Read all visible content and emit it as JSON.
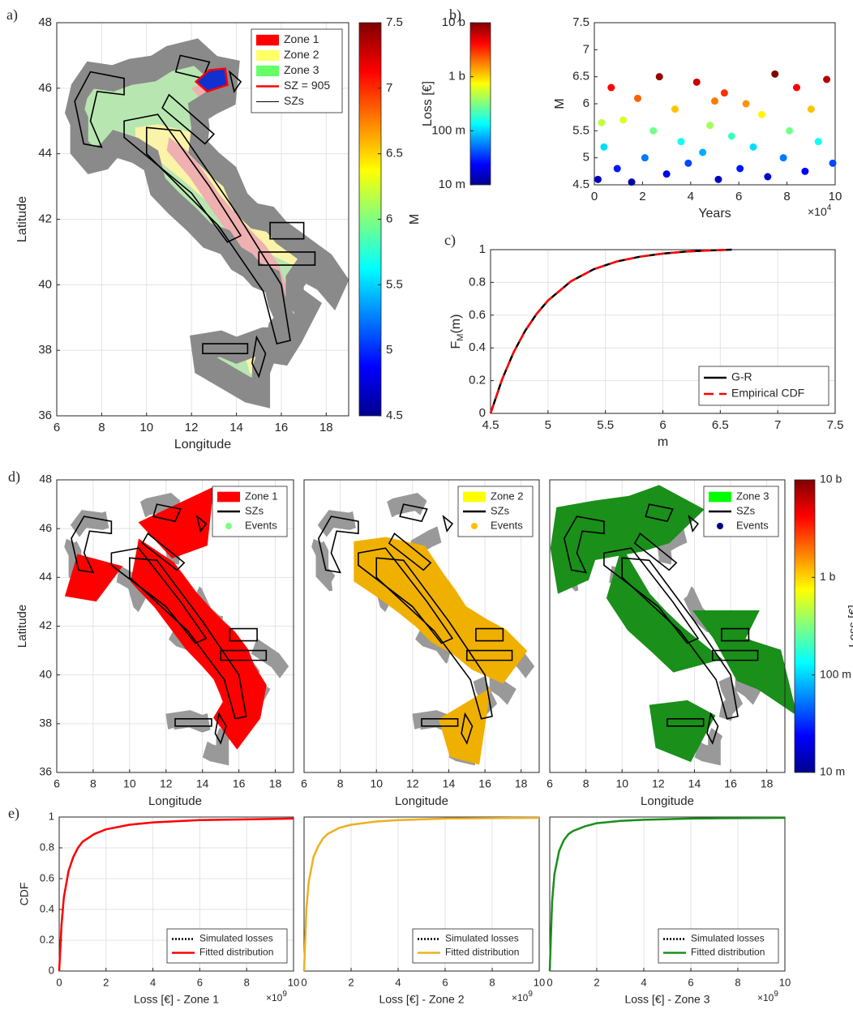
{
  "chart_data": [
    {
      "type": "map",
      "panel": "a)",
      "xlabel": "Longitude",
      "ylabel": "Latitude",
      "xlim": [
        6,
        19
      ],
      "ylim": [
        36,
        48
      ],
      "xticks": [
        6,
        8,
        10,
        12,
        14,
        16,
        18
      ],
      "yticks": [
        36,
        38,
        40,
        42,
        44,
        46,
        48
      ],
      "grid": true,
      "legend_loc": "northeast",
      "legend": [
        {
          "name": "Zone 1",
          "color": "#ff0000",
          "style": "patch"
        },
        {
          "name": "Zone 2",
          "color": "#ffff66",
          "style": "patch"
        },
        {
          "name": "Zone 3",
          "color": "#66ff66",
          "style": "patch"
        },
        {
          "name": "SZ = 905",
          "color": "#ff0000",
          "style": "line"
        },
        {
          "name": "SZs",
          "color": "#000000",
          "style": "thin"
        }
      ],
      "colorbar": {
        "label": "M",
        "lim": [
          4.5,
          7.5
        ],
        "ticks": [
          4.5,
          5,
          5.5,
          6,
          6.5,
          7,
          7.5
        ],
        "colormap": "jet"
      }
    },
    {
      "type": "scatter",
      "panel": "b)",
      "xlabel": "Years",
      "ylabel": "M",
      "x_exponent": [
        "×10",
        "4"
      ],
      "xlim": [
        0,
        100000
      ],
      "ylim": [
        4.5,
        7.5
      ],
      "xticks": [
        0,
        {
          "value": 20000,
          "label": "2"
        },
        {
          "value": 40000,
          "label": "4"
        },
        {
          "value": 60000,
          "label": "6"
        },
        {
          "value": 80000,
          "label": "8"
        },
        {
          "value": 100000,
          "label": "10"
        }
      ],
      "yticks": [
        4.5,
        5,
        5.5,
        6,
        6.5,
        7,
        7.5
      ],
      "grid": false,
      "colormap": "jet",
      "x": [
        1500,
        4000,
        7000,
        9500,
        12000,
        15500,
        18000,
        21000,
        24500,
        27000,
        30000,
        33500,
        36000,
        39000,
        42500,
        45000,
        48000,
        51500,
        54000,
        57000,
        60500,
        63000,
        66000,
        69500,
        72000,
        75000,
        78500,
        81000,
        84000,
        87500,
        90000,
        93000,
        96500,
        99000,
        3000,
        50000
      ],
      "values": [
        4.6,
        5.2,
        6.3,
        4.8,
        5.7,
        4.55,
        6.1,
        5.0,
        5.5,
        6.5,
        4.7,
        5.9,
        5.3,
        4.9,
        6.4,
        5.1,
        5.6,
        4.6,
        6.2,
        5.4,
        4.8,
        6.0,
        5.2,
        5.8,
        4.65,
        6.55,
        5.0,
        5.5,
        6.3,
        4.75,
        5.9,
        5.3,
        6.45,
        4.9,
        5.65,
        6.05
      ],
      "colorbar": {
        "label": "Loss [€]",
        "lim": [
          10000000,
          10000000000
        ],
        "log": true,
        "colormap": "jet",
        "ticks": [
          {
            "value": 10000000,
            "label": "10 m"
          },
          {
            "value": 100000000,
            "label": "100 m"
          },
          {
            "value": 1000000000,
            "label": "1 b"
          },
          {
            "value": 10000000000,
            "label": "10 b"
          }
        ]
      }
    },
    {
      "type": "line",
      "panel": "c)",
      "xlabel": "m",
      "ylabel": [
        "F",
        "M",
        "(m)"
      ],
      "xlim": [
        4.5,
        7.5
      ],
      "ylim": [
        0,
        1
      ],
      "xticks": [
        4.5,
        5,
        5.5,
        6,
        6.5,
        7,
        7.5
      ],
      "yticks": [
        0,
        0.2,
        0.4,
        0.6,
        0.8,
        1
      ],
      "grid": true,
      "legend_loc": "southeast",
      "x": [
        4.5,
        4.6,
        4.7,
        4.8,
        4.9,
        5.0,
        5.2,
        5.4,
        5.6,
        5.8,
        6.0,
        6.2,
        6.4,
        6.6
      ],
      "series": [
        {
          "name": "G-R",
          "color": "#000000",
          "style": "solid",
          "values": [
            0,
            0.207,
            0.372,
            0.503,
            0.607,
            0.689,
            0.807,
            0.881,
            0.928,
            0.957,
            0.976,
            0.988,
            0.995,
            1
          ]
        },
        {
          "name": "Empirical CDF",
          "color": "#ff0000",
          "style": "dashed",
          "values": [
            0,
            0.207,
            0.372,
            0.503,
            0.607,
            0.689,
            0.807,
            0.881,
            0.928,
            0.957,
            0.976,
            0.988,
            0.995,
            1
          ]
        }
      ]
    },
    {
      "type": "map",
      "panel": "d)",
      "xlabel": "Longitude",
      "ylabel": "Latitude",
      "xlim": [
        6,
        19
      ],
      "ylim": [
        36,
        48
      ],
      "xticks": [
        6,
        8,
        10,
        12,
        14,
        16,
        18
      ],
      "yticks": [
        36,
        38,
        40,
        42,
        44,
        46,
        48
      ],
      "grid": true,
      "legend_loc": "northeast",
      "legend": [
        {
          "name": "Zone 1",
          "color": "#ff0000",
          "style": "patch"
        },
        {
          "name": "SZs",
          "color": "#000000",
          "style": "line"
        },
        {
          "name": "Events",
          "color": "#80ff80",
          "style": "dot"
        }
      ]
    },
    {
      "type": "map",
      "xlabel": "Longitude",
      "xlim": [
        6,
        19
      ],
      "ylim": [
        36,
        48
      ],
      "xticks": [
        6,
        8,
        10,
        12,
        14,
        16,
        18
      ],
      "grid": true,
      "legend_loc": "northeast",
      "legend": [
        {
          "name": "Zone 2",
          "color": "#ffff00",
          "style": "patch"
        },
        {
          "name": "SZs",
          "color": "#000000",
          "style": "line"
        },
        {
          "name": "Events",
          "color": "#ffc000",
          "style": "dot"
        }
      ]
    },
    {
      "type": "map",
      "xlabel": "Longitude",
      "xlim": [
        6,
        19
      ],
      "ylim": [
        36,
        48
      ],
      "xticks": [
        6,
        8,
        10,
        12,
        14,
        16,
        18
      ],
      "grid": true,
      "legend_loc": "northeast",
      "legend": [
        {
          "name": "Zone 3",
          "color": "#00ff00",
          "style": "patch"
        },
        {
          "name": "SZs",
          "color": "#000000",
          "style": "line"
        },
        {
          "name": "Events",
          "color": "#000080",
          "style": "dot"
        }
      ],
      "colorbar": {
        "label": "Loss [€]",
        "lim": [
          10000000,
          10000000000
        ],
        "log": true,
        "colormap": "jet",
        "ticks": [
          {
            "value": 10000000,
            "label": "10 m"
          },
          {
            "value": 100000000,
            "label": "100 m"
          },
          {
            "value": 1000000000,
            "label": "1 b"
          },
          {
            "value": 10000000000,
            "label": "10 b"
          }
        ]
      }
    },
    {
      "type": "line",
      "panel": "e)",
      "xlabel": "Loss [€] - Zone 1",
      "ylabel": "CDF",
      "x_exponent": [
        "×10",
        "9"
      ],
      "xlim": [
        0,
        10000000000
      ],
      "ylim": [
        0,
        1
      ],
      "xticks": [
        0,
        {
          "value": 2000000000,
          "label": "2"
        },
        {
          "value": 4000000000,
          "label": "4"
        },
        {
          "value": 6000000000,
          "label": "6"
        },
        {
          "value": 8000000000,
          "label": "8"
        },
        {
          "value": 10000000000,
          "label": "10"
        }
      ],
      "yticks": [
        0,
        0.2,
        0.4,
        0.6,
        0.8,
        1
      ],
      "grid": true,
      "legend_loc": "southeast",
      "x": [
        0,
        100000000,
        200000000,
        400000000,
        600000000,
        800000000,
        1000000000,
        1500000000,
        2000000000,
        3000000000,
        4000000000,
        6000000000,
        8000000000,
        10000000000
      ],
      "series": [
        {
          "name": "Simulated losses",
          "color": "#000000",
          "style": "dotted",
          "values": [
            0,
            0.31,
            0.48,
            0.65,
            0.74,
            0.8,
            0.84,
            0.89,
            0.92,
            0.95,
            0.965,
            0.98,
            0.985,
            0.99
          ]
        },
        {
          "name": "Fitted distribution",
          "color": "#ff0000",
          "style": "solid",
          "values": [
            0,
            0.3,
            0.48,
            0.65,
            0.74,
            0.8,
            0.84,
            0.89,
            0.92,
            0.95,
            0.965,
            0.98,
            0.985,
            0.99
          ]
        }
      ]
    },
    {
      "type": "line",
      "xlabel": "Loss [€] - Zone 2",
      "x_exponent": [
        "×10",
        "9"
      ],
      "xlim": [
        0,
        10000000000
      ],
      "ylim": [
        0,
        1
      ],
      "xticks": [
        0,
        {
          "value": 2000000000,
          "label": "2"
        },
        {
          "value": 4000000000,
          "label": "4"
        },
        {
          "value": 6000000000,
          "label": "6"
        },
        {
          "value": 8000000000,
          "label": "8"
        },
        {
          "value": 10000000000,
          "label": "10"
        }
      ],
      "grid": true,
      "legend_loc": "southeast",
      "x": [
        0,
        100000000,
        200000000,
        400000000,
        600000000,
        800000000,
        1000000000,
        1500000000,
        2000000000,
        3000000000,
        4000000000,
        6000000000,
        8000000000,
        10000000000
      ],
      "series": [
        {
          "name": "Simulated losses",
          "color": "#000000",
          "style": "dotted",
          "values": [
            0,
            0.41,
            0.58,
            0.74,
            0.81,
            0.86,
            0.89,
            0.93,
            0.95,
            0.97,
            0.98,
            0.99,
            0.993,
            0.995
          ]
        },
        {
          "name": "Fitted distribution",
          "color": "#edb120",
          "style": "solid",
          "values": [
            0,
            0.4,
            0.58,
            0.74,
            0.81,
            0.86,
            0.89,
            0.93,
            0.95,
            0.97,
            0.98,
            0.99,
            0.993,
            0.995
          ]
        }
      ]
    },
    {
      "type": "line",
      "xlabel": "Loss [€] - Zone 3",
      "x_exponent": [
        "×10",
        "9"
      ],
      "xlim": [
        0,
        10000000000
      ],
      "ylim": [
        0,
        1
      ],
      "xticks": [
        0,
        {
          "value": 2000000000,
          "label": "2"
        },
        {
          "value": 4000000000,
          "label": "4"
        },
        {
          "value": 6000000000,
          "label": "6"
        },
        {
          "value": 8000000000,
          "label": "8"
        },
        {
          "value": 10000000000,
          "label": "10"
        }
      ],
      "grid": true,
      "legend_loc": "southeast",
      "x": [
        0,
        100000000,
        200000000,
        400000000,
        600000000,
        800000000,
        1000000000,
        1500000000,
        2000000000,
        3000000000,
        4000000000,
        6000000000,
        8000000000,
        10000000000
      ],
      "series": [
        {
          "name": "Simulated losses",
          "color": "#000000",
          "style": "dotted",
          "values": [
            0,
            0.46,
            0.63,
            0.78,
            0.85,
            0.89,
            0.91,
            0.94,
            0.96,
            0.975,
            0.982,
            0.99,
            0.993,
            0.995
          ]
        },
        {
          "name": "Fitted distribution",
          "color": "#1a8f1a",
          "style": "solid",
          "values": [
            0,
            0.45,
            0.63,
            0.78,
            0.85,
            0.89,
            0.91,
            0.94,
            0.96,
            0.975,
            0.982,
            0.99,
            0.993,
            0.995
          ]
        }
      ]
    }
  ]
}
